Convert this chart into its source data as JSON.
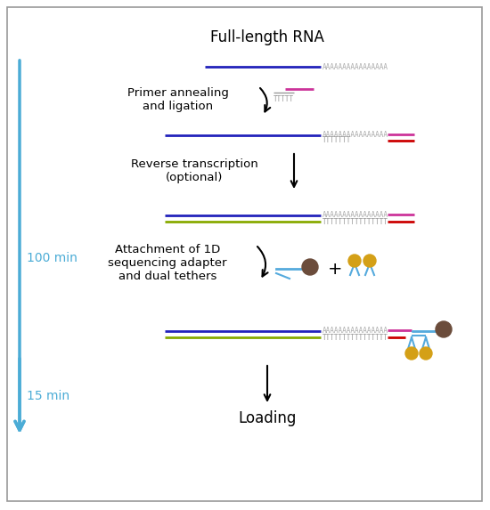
{
  "bg_color": "#ffffff",
  "border_color": "#999999",
  "step1_label": "Full-length RNA",
  "step2_label": "Primer annealing\nand ligation",
  "step3_label": "Reverse transcription\n(optional)",
  "step4_label": "Attachment of 1D\nsequencing adapter\nand dual tethers",
  "step5_label": "Loading",
  "time1_label": "100 min",
  "time2_label": "15 min",
  "arrow_color": "#4BACD6",
  "rna_color": "#2222BB",
  "polyA_color": "#AAAAAA",
  "primer_color": "#CC0000",
  "primerT_color": "#999999",
  "oligo_color": "#CC3399",
  "cdna_color": "#88AA00",
  "adapter_color": "#55AADD",
  "motor_color": "#6B4C3B",
  "tether_color": "#D4A017"
}
